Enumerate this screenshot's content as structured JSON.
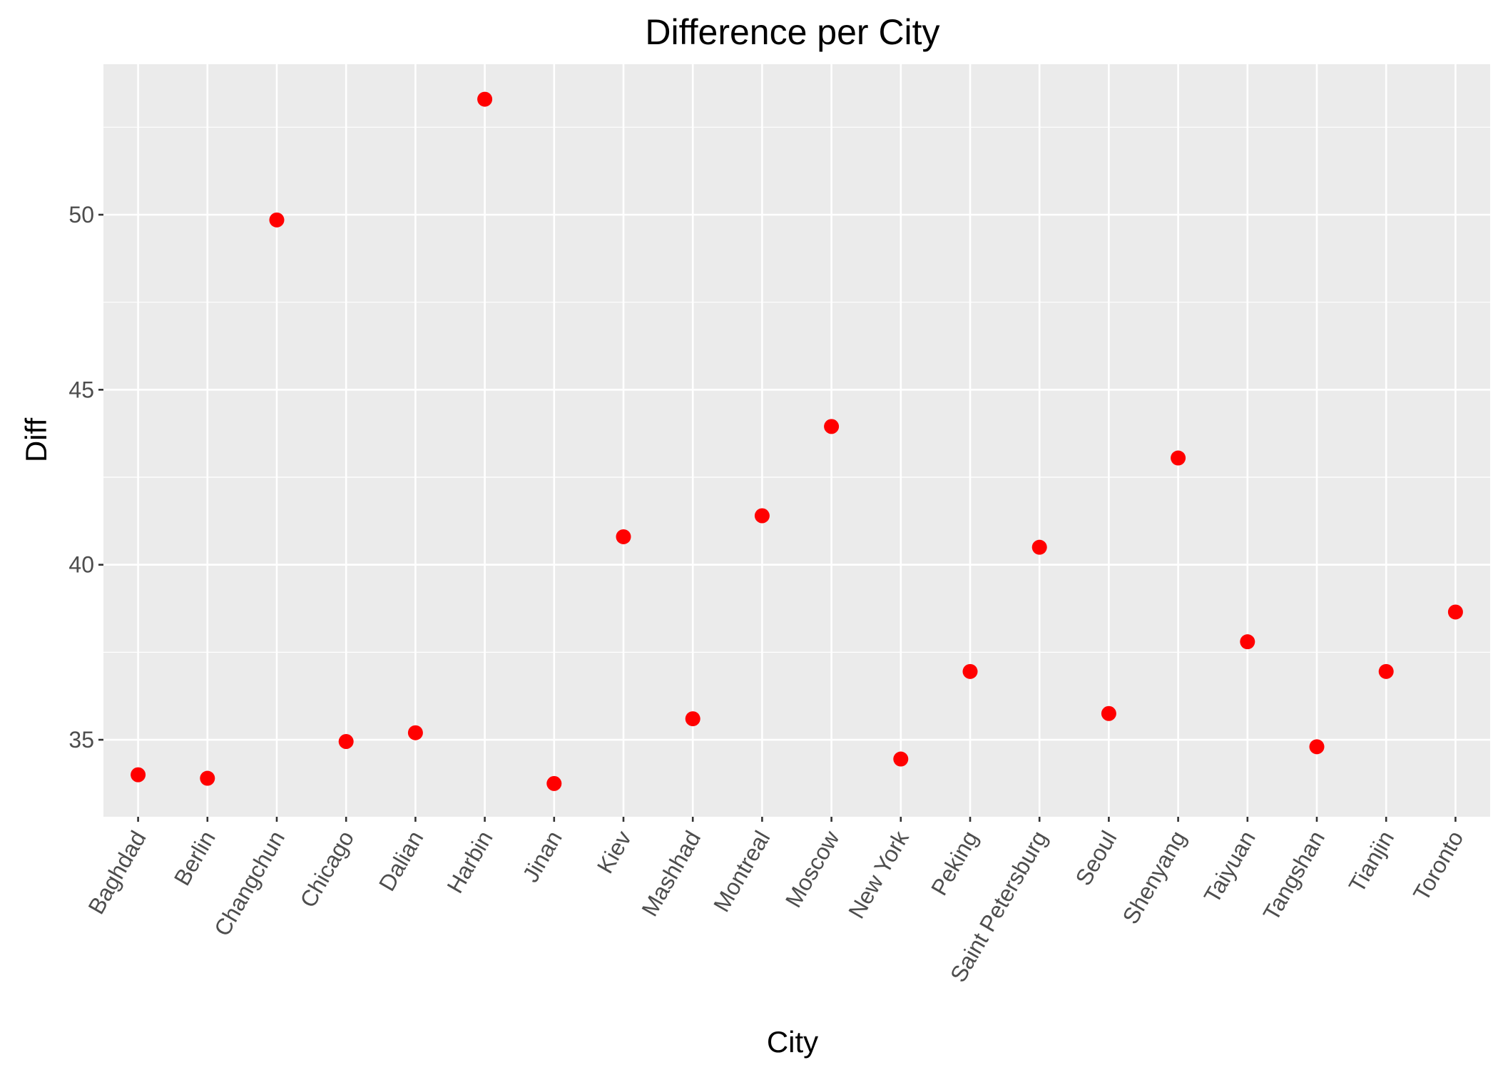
{
  "chart_data": {
    "type": "scatter",
    "title": "Difference per City",
    "xlabel": "City",
    "ylabel": "Diff",
    "categories": [
      "Baghdad",
      "Berlin",
      "Changchun",
      "Chicago",
      "Dalian",
      "Harbin",
      "Jinan",
      "Kiev",
      "Mashhad",
      "Montreal",
      "Moscow",
      "New York",
      "Peking",
      "Saint Petersburg",
      "Seoul",
      "Shenyang",
      "Taiyuan",
      "Tangshan",
      "Tianjin",
      "Toronto"
    ],
    "values": [
      34.0,
      33.9,
      49.85,
      34.95,
      35.2,
      53.3,
      33.75,
      40.8,
      35.6,
      41.4,
      43.95,
      34.45,
      36.95,
      40.5,
      35.75,
      43.05,
      37.8,
      34.8,
      36.95,
      38.65
    ],
    "ylim": [
      32.8,
      54.3
    ],
    "yticks": [
      35,
      40,
      45,
      50
    ],
    "ytick_labels": [
      "35",
      "40",
      "45",
      "50"
    ],
    "grid": true,
    "legend": "none",
    "colors": {
      "point": "#ff0000",
      "panel_background": "#ebebeb",
      "grid": "#ffffff"
    }
  }
}
